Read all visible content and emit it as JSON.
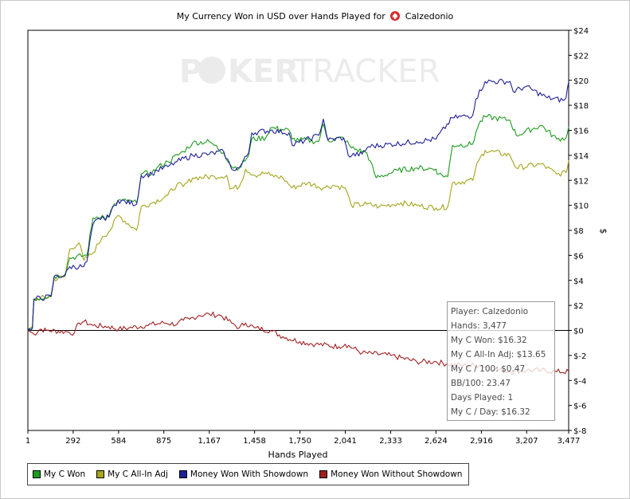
{
  "title": {
    "prefix": "My Currency Won in USD over Hands Played for",
    "player": "Calzedonio"
  },
  "watermark": "POKERTRACKER",
  "chart_data": {
    "type": "line",
    "xlabel": "Hands Played",
    "ylabel": "$",
    "xlim": [
      1,
      3477
    ],
    "ylim": [
      -8,
      24
    ],
    "x_ticks": [
      1,
      292,
      584,
      875,
      1167,
      1458,
      1750,
      2041,
      2333,
      2624,
      2916,
      3207,
      3477
    ],
    "x_tick_labels": [
      "1",
      "292",
      "584",
      "875",
      "1,167",
      "1,458",
      "1,750",
      "2,041",
      "2,333",
      "2,624",
      "2,916",
      "3,207",
      "3,477"
    ],
    "y_ticks": [
      24,
      22,
      20,
      18,
      16,
      14,
      12,
      10,
      8,
      6,
      4,
      2,
      0,
      -2,
      -4,
      -6,
      -8
    ],
    "y_tick_labels": [
      "$24",
      "$22",
      "$20",
      "$18",
      "$16",
      "$14",
      "$12",
      "$10",
      "$8",
      "$6",
      "$4",
      "$2",
      "$0",
      "$-2",
      "$-4",
      "$-6",
      "$-8"
    ],
    "grid": false,
    "legend_position": "bottom-left",
    "series": [
      {
        "name": "My C Won",
        "color": "#1d9b1d",
        "points": [
          [
            1,
            0
          ],
          [
            30,
            0.2
          ],
          [
            40,
            2.5
          ],
          [
            150,
            2.8
          ],
          [
            170,
            4.3
          ],
          [
            240,
            4.5
          ],
          [
            270,
            5.8
          ],
          [
            380,
            6.0
          ],
          [
            420,
            9.0
          ],
          [
            480,
            9.2
          ],
          [
            500,
            8.8
          ],
          [
            580,
            10.4
          ],
          [
            700,
            10.2
          ],
          [
            730,
            12.5
          ],
          [
            800,
            12.6
          ],
          [
            830,
            13.0
          ],
          [
            900,
            13.5
          ],
          [
            1000,
            14.3
          ],
          [
            1060,
            15.0
          ],
          [
            1167,
            15.1
          ],
          [
            1200,
            14.8
          ],
          [
            1260,
            14.2
          ],
          [
            1310,
            13.1
          ],
          [
            1360,
            13.0
          ],
          [
            1420,
            14.0
          ],
          [
            1440,
            15.3
          ],
          [
            1530,
            15.4
          ],
          [
            1560,
            16.2
          ],
          [
            1680,
            16.0
          ],
          [
            1700,
            15.3
          ],
          [
            1870,
            15.1
          ],
          [
            1900,
            16.5
          ],
          [
            1930,
            15.2
          ],
          [
            2030,
            15.4
          ],
          [
            2080,
            14.6
          ],
          [
            2180,
            14.2
          ],
          [
            2240,
            12.2
          ],
          [
            2380,
            12.8
          ],
          [
            2500,
            13.0
          ],
          [
            2624,
            12.9
          ],
          [
            2640,
            12.5
          ],
          [
            2700,
            12.3
          ],
          [
            2730,
            14.8
          ],
          [
            2860,
            14.9
          ],
          [
            2880,
            15.8
          ],
          [
            2900,
            16.5
          ],
          [
            2940,
            17.1
          ],
          [
            3100,
            16.8
          ],
          [
            3140,
            15.6
          ],
          [
            3300,
            16.4
          ],
          [
            3400,
            15.3
          ],
          [
            3460,
            15.4
          ],
          [
            3477,
            16.3
          ]
        ]
      },
      {
        "name": "My C All-In Adj",
        "color": "#a5a51e",
        "points": [
          [
            1,
            0
          ],
          [
            30,
            0.2
          ],
          [
            40,
            2.5
          ],
          [
            150,
            2.7
          ],
          [
            170,
            4.1
          ],
          [
            240,
            4.3
          ],
          [
            270,
            6.5
          ],
          [
            330,
            7.0
          ],
          [
            360,
            5.6
          ],
          [
            420,
            6.2
          ],
          [
            480,
            7.5
          ],
          [
            530,
            8.0
          ],
          [
            580,
            9.2
          ],
          [
            700,
            8.0
          ],
          [
            730,
            9.9
          ],
          [
            800,
            10.2
          ],
          [
            900,
            10.8
          ],
          [
            960,
            11.7
          ],
          [
            1000,
            11.5
          ],
          [
            1060,
            12.2
          ],
          [
            1200,
            12.3
          ],
          [
            1280,
            12.4
          ],
          [
            1300,
            11.3
          ],
          [
            1360,
            11.5
          ],
          [
            1400,
            12.9
          ],
          [
            1460,
            12.4
          ],
          [
            1530,
            12.6
          ],
          [
            1560,
            12.4
          ],
          [
            1640,
            12.2
          ],
          [
            1700,
            11.4
          ],
          [
            1800,
            11.8
          ],
          [
            1900,
            11.4
          ],
          [
            1960,
            11.6
          ],
          [
            2041,
            11.4
          ],
          [
            2080,
            10.0
          ],
          [
            2180,
            10.1
          ],
          [
            2260,
            9.9
          ],
          [
            2400,
            10.2
          ],
          [
            2500,
            10.0
          ],
          [
            2624,
            9.8
          ],
          [
            2700,
            9.9
          ],
          [
            2730,
            11.8
          ],
          [
            2860,
            12.0
          ],
          [
            2880,
            13.0
          ],
          [
            2900,
            13.6
          ],
          [
            2940,
            14.4
          ],
          [
            3100,
            14.0
          ],
          [
            3140,
            13.0
          ],
          [
            3300,
            13.3
          ],
          [
            3400,
            12.5
          ],
          [
            3460,
            12.6
          ],
          [
            3477,
            13.6
          ]
        ]
      },
      {
        "name": "Money Won With Showdown",
        "color": "#1e1e96",
        "points": [
          [
            1,
            0
          ],
          [
            30,
            0.2
          ],
          [
            40,
            2.5
          ],
          [
            150,
            2.7
          ],
          [
            170,
            4.3
          ],
          [
            240,
            4.4
          ],
          [
            270,
            5.1
          ],
          [
            360,
            5.1
          ],
          [
            380,
            5.5
          ],
          [
            420,
            8.5
          ],
          [
            480,
            9.1
          ],
          [
            500,
            8.8
          ],
          [
            580,
            10.4
          ],
          [
            700,
            10.1
          ],
          [
            730,
            12.4
          ],
          [
            800,
            12.5
          ],
          [
            830,
            12.8
          ],
          [
            900,
            13.1
          ],
          [
            960,
            13.5
          ],
          [
            1060,
            14.0
          ],
          [
            1167,
            14.1
          ],
          [
            1260,
            14.3
          ],
          [
            1310,
            12.9
          ],
          [
            1360,
            13.0
          ],
          [
            1420,
            14.2
          ],
          [
            1440,
            15.8
          ],
          [
            1560,
            16.0
          ],
          [
            1680,
            15.8
          ],
          [
            1700,
            14.8
          ],
          [
            1870,
            15.6
          ],
          [
            1900,
            16.9
          ],
          [
            1930,
            15.2
          ],
          [
            2030,
            15.4
          ],
          [
            2060,
            14.0
          ],
          [
            2150,
            14.1
          ],
          [
            2190,
            14.7
          ],
          [
            2500,
            15.1
          ],
          [
            2624,
            15.3
          ],
          [
            2730,
            17.0
          ],
          [
            2860,
            17.2
          ],
          [
            2880,
            18.5
          ],
          [
            2940,
            19.9
          ],
          [
            3100,
            19.9
          ],
          [
            3120,
            19.1
          ],
          [
            3200,
            19.5
          ],
          [
            3340,
            18.6
          ],
          [
            3440,
            18.4
          ],
          [
            3460,
            18.6
          ],
          [
            3477,
            19.9
          ]
        ]
      },
      {
        "name": "Money Won Without Showdown",
        "color": "#a02020",
        "points": [
          [
            1,
            0
          ],
          [
            40,
            -0.3
          ],
          [
            80,
            0.1
          ],
          [
            120,
            0.0
          ],
          [
            240,
            -0.1
          ],
          [
            300,
            -0.2
          ],
          [
            330,
            0.6
          ],
          [
            360,
            0.7
          ],
          [
            420,
            0.4
          ],
          [
            520,
            0.3
          ],
          [
            584,
            0.1
          ],
          [
            650,
            0.2
          ],
          [
            760,
            0.4
          ],
          [
            875,
            0.6
          ],
          [
            960,
            0.5
          ],
          [
            1000,
            0.8
          ],
          [
            1040,
            0.9
          ],
          [
            1100,
            1.2
          ],
          [
            1167,
            1.3
          ],
          [
            1240,
            1.2
          ],
          [
            1310,
            0.6
          ],
          [
            1360,
            0.2
          ],
          [
            1400,
            0.6
          ],
          [
            1458,
            0.2
          ],
          [
            1560,
            0.0
          ],
          [
            1640,
            -0.5
          ],
          [
            1750,
            -0.9
          ],
          [
            1850,
            -1.1
          ],
          [
            2000,
            -1.3
          ],
          [
            2041,
            -1.1
          ],
          [
            2150,
            -1.8
          ],
          [
            2333,
            -2.0
          ],
          [
            2500,
            -2.5
          ],
          [
            2624,
            -2.5
          ],
          [
            2700,
            -2.7
          ],
          [
            2800,
            -2.8
          ],
          [
            2916,
            -2.8
          ],
          [
            3000,
            -3.1
          ],
          [
            3100,
            -3.3
          ],
          [
            3207,
            -3.2
          ],
          [
            3300,
            -3.2
          ],
          [
            3400,
            -3.3
          ],
          [
            3477,
            -3.3
          ]
        ]
      }
    ]
  },
  "infobox": {
    "player": "Player: Calzedonio",
    "hands": "Hands: 3,477",
    "won": "My C Won: $16.32",
    "allin": "My C All-In Adj: $13.65",
    "per100": "My C / 100: $0.47",
    "bb100": "BB/100: 23.47",
    "days": "Days Played: 1",
    "perday": "My C / Day: $16.32"
  },
  "legend": [
    {
      "label": "My C Won",
      "color": "#1d9b1d"
    },
    {
      "label": "My C All-In Adj",
      "color": "#a5a51e"
    },
    {
      "label": "Money Won With Showdown",
      "color": "#1e1e96"
    },
    {
      "label": "Money Won Without Showdown",
      "color": "#a02020"
    }
  ]
}
